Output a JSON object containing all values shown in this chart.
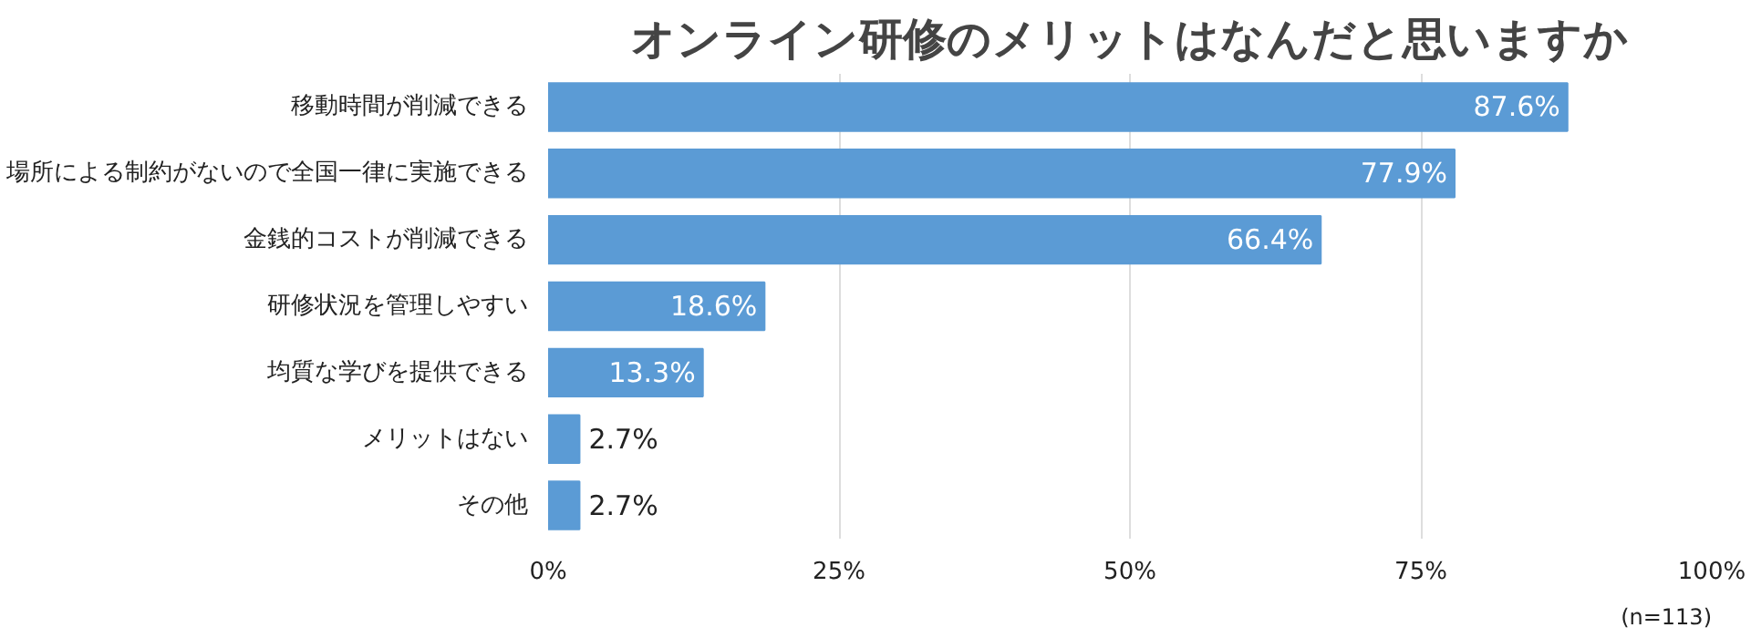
{
  "chart_data": {
    "type": "bar",
    "orientation": "horizontal",
    "title": "オンライン研修のメリットはなんだと思いますか",
    "categories": [
      "移動時間が削減できる",
      "場所による制約がないので全国一律に実施できる",
      "金銭的コストが削減できる",
      "研修状況を管理しやすい",
      "均質な学びを提供できる",
      "メリットはない",
      "その他"
    ],
    "values": [
      87.6,
      77.9,
      66.4,
      18.6,
      13.3,
      2.7,
      2.7
    ],
    "value_labels": [
      "87.6%",
      "77.9%",
      "66.4%",
      "18.6%",
      "13.3%",
      "2.7%",
      "2.7%"
    ],
    "color": "#5b9bd5",
    "xlim": [
      0,
      100
    ],
    "xticks": [
      {
        "value": 0,
        "label": "0%"
      },
      {
        "value": 25,
        "label": "25%"
      },
      {
        "value": 50,
        "label": "50%"
      },
      {
        "value": 75,
        "label": "75%"
      },
      {
        "value": 100,
        "label": "100%"
      }
    ],
    "grid": "x",
    "annotations": [
      "(n=113)"
    ]
  }
}
